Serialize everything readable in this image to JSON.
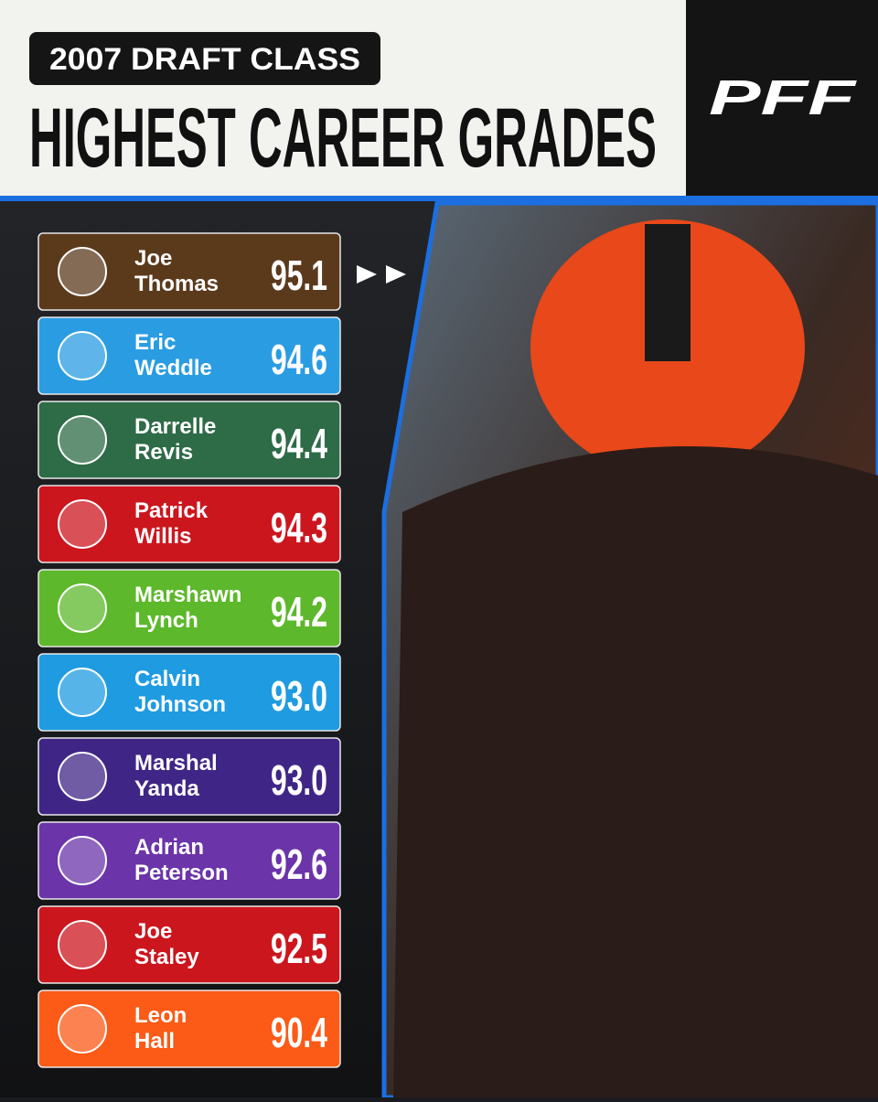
{
  "header": {
    "subtitle": "2007 DRAFT CLASS",
    "title": "HIGHEST CAREER GRADES",
    "logo": "PFF"
  },
  "rows": [
    {
      "first": "Joe",
      "last": "Thomas",
      "grade": "95.1",
      "color": "#5b3a1c"
    },
    {
      "first": "Eric",
      "last": "Weddle",
      "grade": "94.6",
      "color": "#2a9ce2"
    },
    {
      "first": "Darrelle",
      "last": "Revis",
      "grade": "94.4",
      "color": "#2e6b47"
    },
    {
      "first": "Patrick",
      "last": "Willis",
      "grade": "94.3",
      "color": "#cc161e"
    },
    {
      "first": "Marshawn",
      "last": "Lynch",
      "grade": "94.2",
      "color": "#5db82b"
    },
    {
      "first": "Calvin",
      "last": "Johnson",
      "grade": "93.0",
      "color": "#1f9be2"
    },
    {
      "first": "Marshal",
      "last": "Yanda",
      "grade": "93.0",
      "color": "#3f2686"
    },
    {
      "first": "Adrian",
      "last": "Peterson",
      "grade": "92.6",
      "color": "#6b34a9"
    },
    {
      "first": "Joe",
      "last": "Staley",
      "grade": "92.5",
      "color": "#cc161e"
    },
    {
      "first": "Leon",
      "last": "Hall",
      "grade": "90.4",
      "color": "#fb5a17"
    }
  ]
}
